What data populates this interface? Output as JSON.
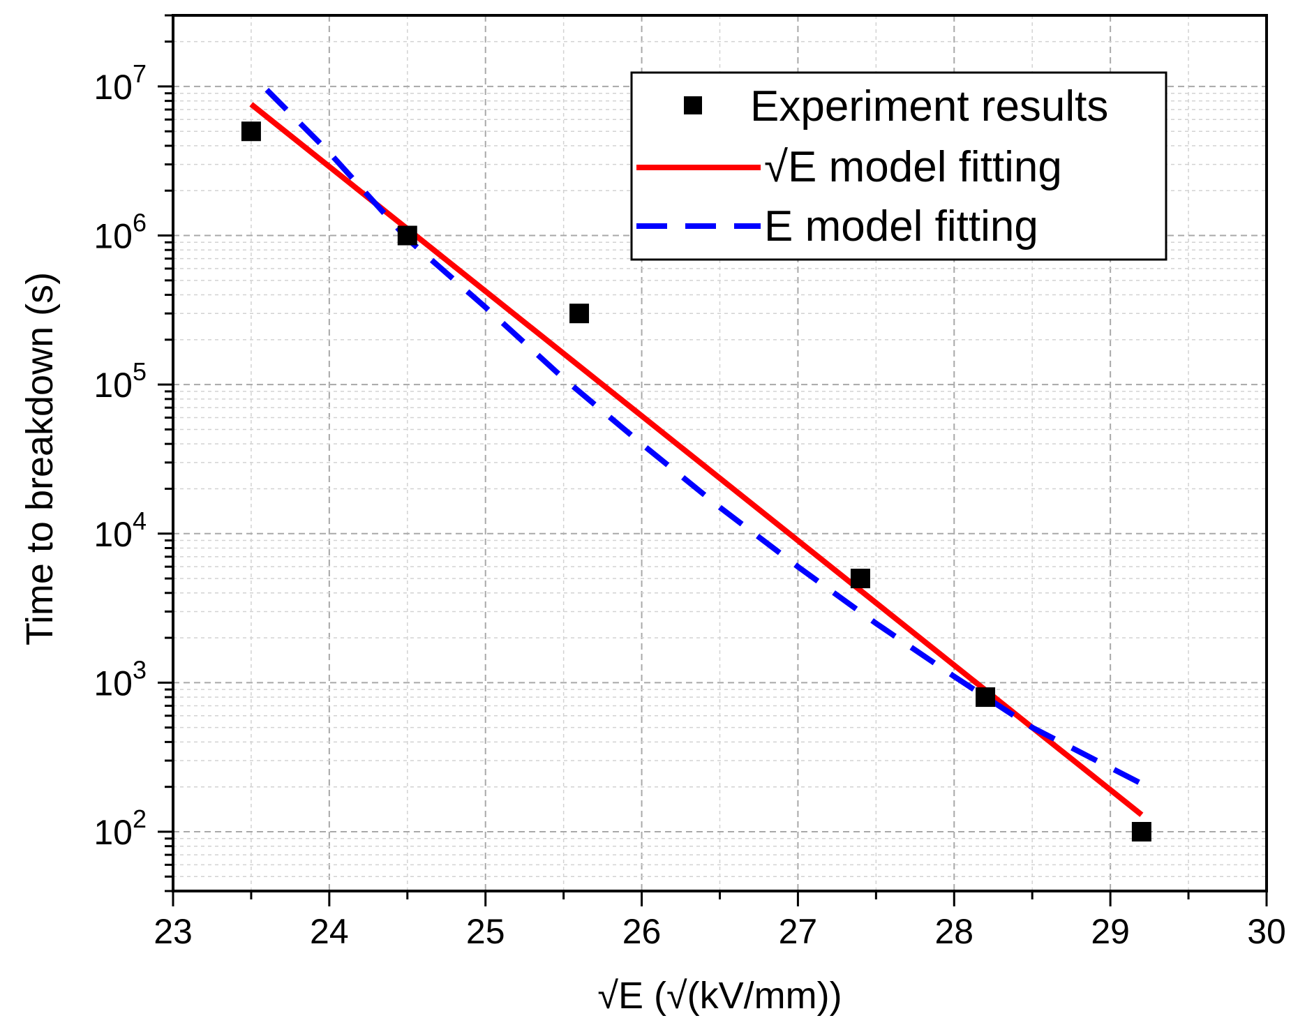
{
  "chart_data": {
    "type": "scatter",
    "xlabel": "√E (√(kV/mm))",
    "ylabel": "Time to breakdown (s)",
    "xlim": [
      23,
      30
    ],
    "x_ticks": [
      "23",
      "24",
      "25",
      "26",
      "27",
      "28",
      "29",
      "30"
    ],
    "yscale": "log",
    "ylim": [
      40,
      30000000
    ],
    "y_ticks": [
      {
        "base": "10",
        "exp": "2",
        "value": 100
      },
      {
        "base": "10",
        "exp": "3",
        "value": 1000
      },
      {
        "base": "10",
        "exp": "4",
        "value": 10000
      },
      {
        "base": "10",
        "exp": "5",
        "value": 100000
      },
      {
        "base": "10",
        "exp": "6",
        "value": 1000000
      },
      {
        "base": "10",
        "exp": "7",
        "value": 10000000
      }
    ],
    "grid": true,
    "legend_position": "top-right",
    "series": [
      {
        "name": "Experiment results",
        "kind": "scatter",
        "marker": "square",
        "color": "#000000",
        "x": [
          23.5,
          24.5,
          25.6,
          27.4,
          28.2,
          29.2
        ],
        "y": [
          5000000,
          1000000,
          300000,
          5000,
          800,
          100
        ]
      },
      {
        "name": "√E model fitting",
        "kind": "line",
        "style": "solid",
        "color": "#ff0000",
        "x": [
          23.5,
          29.2
        ],
        "y": [
          7600000,
          130
        ]
      },
      {
        "name": "E model fitting",
        "kind": "line",
        "style": "dashed",
        "color": "#0000ff",
        "x": [
          23.6,
          24.0,
          24.5,
          25.0,
          25.5,
          26.0,
          26.5,
          27.0,
          27.5,
          28.0,
          28.5,
          29.2
        ],
        "y": [
          9500000,
          3600000,
          950000,
          330000,
          110000,
          40000,
          15000,
          6000,
          2500,
          1100,
          500,
          210
        ]
      }
    ]
  }
}
